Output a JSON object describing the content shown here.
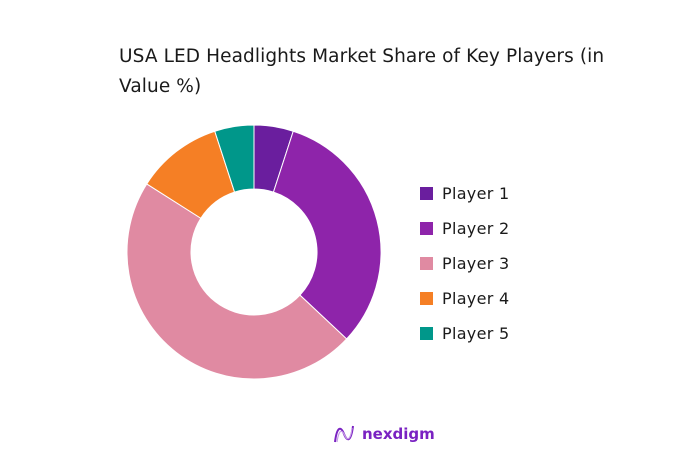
{
  "chart_data": {
    "type": "pie",
    "variant": "donut",
    "title": "USA LED Headlights Market Share of Key Players (in Value %)",
    "categories": [
      "Player 1",
      "Player 2",
      "Player 3",
      "Player 4",
      "Player 5"
    ],
    "values": [
      5,
      32,
      47,
      11,
      5
    ],
    "colors": [
      "#6a1e9e",
      "#8e24aa",
      "#e08aa2",
      "#f57f25",
      "#00978a"
    ],
    "legend_position": "right",
    "start_angle": "top, clockwise"
  },
  "brand": {
    "name": "nexdigm",
    "color": "#7a22c2"
  }
}
